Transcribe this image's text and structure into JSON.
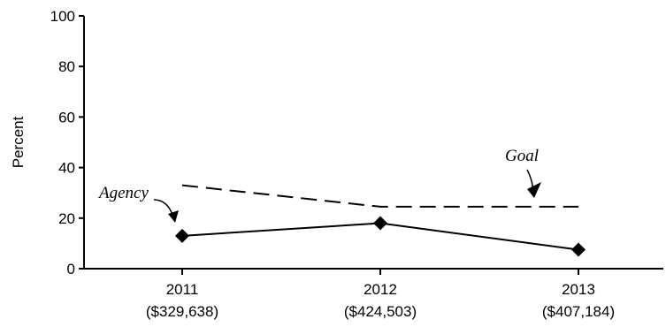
{
  "chart_data": {
    "type": "line",
    "title": "",
    "xlabel": "",
    "ylabel": "Percent",
    "ylim": [
      0,
      100
    ],
    "yticks": [
      0,
      20,
      40,
      60,
      80,
      100
    ],
    "grid": false,
    "categories": [
      "2011",
      "2012",
      "2013"
    ],
    "category_sublabels": [
      "($329,638)",
      "($424,503)",
      "($407,184)"
    ],
    "series": [
      {
        "name": "Agency",
        "values": [
          13,
          18,
          7.5
        ],
        "style": "solid",
        "marker": "diamond",
        "color": "#000000"
      },
      {
        "name": "Goal",
        "values": [
          33,
          24.5,
          24.5
        ],
        "style": "dashed",
        "marker": "none",
        "color": "#000000"
      }
    ],
    "annotations": [
      {
        "text": "Agency",
        "series": "Agency"
      },
      {
        "text": "Goal",
        "series": "Goal"
      }
    ]
  }
}
